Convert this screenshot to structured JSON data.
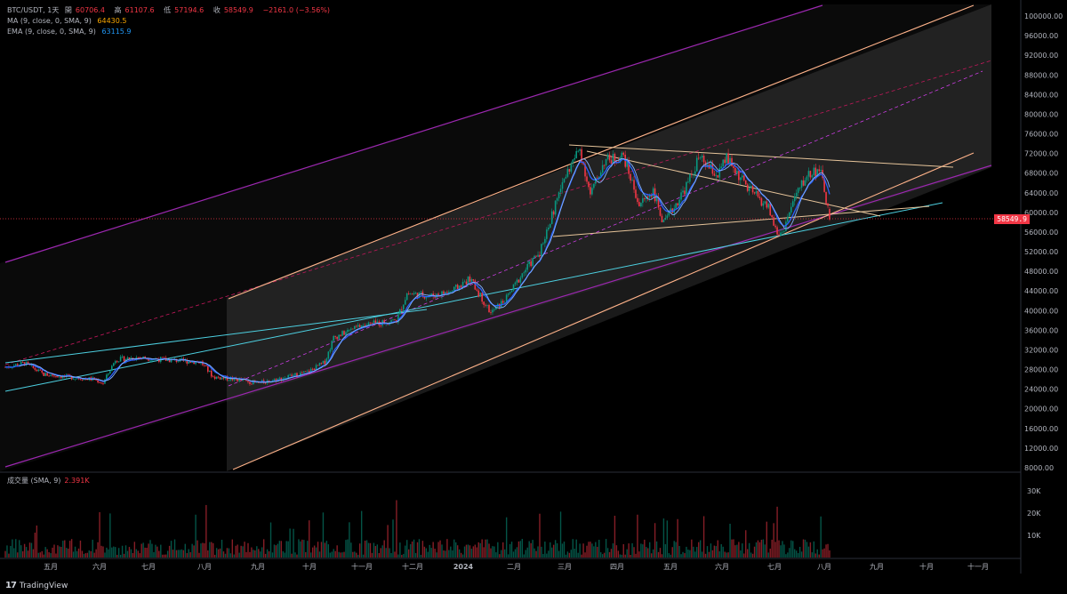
{
  "legend": {
    "symbol": "BTC/USDT, 1天",
    "open_label": "開",
    "open": "60706.4",
    "high_label": "高",
    "high": "61107.6",
    "low_label": "低",
    "low": "57194.6",
    "close_label": "收",
    "close": "58549.9",
    "change": "−2161.0 (−3.56%)",
    "ma_label": "MA (9, close, 0, SMA, 9)",
    "ma_value": "64430.5",
    "ema_label": "EMA (9, close, 0, SMA, 9)",
    "ema_value": "63115.9"
  },
  "volume_legend": {
    "label": "成交量 (SMA, 9)",
    "value": "2.391K"
  },
  "current_price_tag": "58549.9",
  "footer": {
    "logo": "17",
    "brand": "TradingView"
  },
  "colors": {
    "up": "#089981",
    "down": "#f23645",
    "ema": "#2962ff",
    "ma": "#2196f3",
    "channel_purple": "#9c27b0",
    "channel_orange": "#ffb38a",
    "trend_teal": "#4dd0e1",
    "triangle": "#e6c49a"
  },
  "chart_data": {
    "type": "candlestick",
    "title": "BTC/USDT, 1天",
    "y_axis": {
      "ticks": [
        8000,
        12000,
        16000,
        20000,
        24000,
        28000,
        32000,
        36000,
        40000,
        44000,
        48000,
        52000,
        56000,
        60000,
        64000,
        68000,
        72000,
        76000,
        80000,
        84000,
        88000,
        92000,
        96000,
        100000
      ],
      "tick_labels": [
        "8000.00",
        "12000.00",
        "16000.00",
        "20000.00",
        "24000.00",
        "28000.00",
        "32000.00",
        "36000.00",
        "40000.00",
        "44000.00",
        "48000.00",
        "52000.00",
        "56000.00",
        "60000.00",
        "64000.00",
        "68000.00",
        "72000.00",
        "76000.00",
        "80000.00",
        "84000.00",
        "88000.00",
        "92000.00",
        "96000.00",
        "100000.00"
      ],
      "range": [
        6000,
        102000
      ]
    },
    "x_axis": {
      "labels": [
        "五月",
        "六月",
        "七月",
        "八月",
        "九月",
        "十月",
        "十一月",
        "十二月",
        "2024",
        "二月",
        "三月",
        "四月",
        "五月",
        "六月",
        "七月",
        "八月",
        "九月",
        "十月",
        "十一月"
      ]
    },
    "volume_axis": {
      "tick_labels": [
        "10K",
        "20K",
        "30K"
      ]
    },
    "price_path": [
      [
        "2023-04-20",
        28500
      ],
      [
        "2023-05-01",
        29300
      ],
      [
        "2023-05-12",
        27000
      ],
      [
        "2023-05-25",
        26500
      ],
      [
        "2023-06-10",
        26000
      ],
      [
        "2023-06-15",
        25200
      ],
      [
        "2023-06-22",
        30000
      ],
      [
        "2023-07-05",
        30500
      ],
      [
        "2023-07-20",
        30000
      ],
      [
        "2023-08-10",
        29500
      ],
      [
        "2023-08-17",
        26500
      ],
      [
        "2023-09-01",
        25900
      ],
      [
        "2023-09-11",
        25200
      ],
      [
        "2023-09-25",
        26200
      ],
      [
        "2023-10-10",
        27500
      ],
      [
        "2023-10-20",
        29500
      ],
      [
        "2023-10-25",
        34500
      ],
      [
        "2023-11-10",
        37000
      ],
      [
        "2023-11-30",
        38000
      ],
      [
        "2023-12-06",
        43500
      ],
      [
        "2023-12-20",
        43000
      ],
      [
        "2024-01-01",
        44000
      ],
      [
        "2024-01-11",
        46500
      ],
      [
        "2024-01-23",
        39500
      ],
      [
        "2024-02-01",
        42500
      ],
      [
        "2024-02-10",
        47500
      ],
      [
        "2024-02-20",
        52000
      ],
      [
        "2024-02-29",
        61500
      ],
      [
        "2024-03-05",
        67000
      ],
      [
        "2024-03-14",
        73000
      ],
      [
        "2024-03-20",
        63500
      ],
      [
        "2024-03-28",
        70500
      ],
      [
        "2024-04-08",
        71500
      ],
      [
        "2024-04-17",
        61500
      ],
      [
        "2024-04-25",
        64500
      ],
      [
        "2024-05-01",
        57500
      ],
      [
        "2024-05-15",
        66000
      ],
      [
        "2024-05-21",
        71000
      ],
      [
        "2024-06-01",
        67500
      ],
      [
        "2024-06-06",
        71000
      ],
      [
        "2024-06-18",
        65000
      ],
      [
        "2024-06-30",
        61000
      ],
      [
        "2024-07-05",
        55500
      ],
      [
        "2024-07-08",
        56000
      ],
      [
        "2024-07-15",
        63000
      ],
      [
        "2024-07-22",
        67500
      ],
      [
        "2024-07-29",
        69000
      ],
      [
        "2024-08-01",
        64500
      ],
      [
        "2024-08-03",
        60700
      ],
      [
        "2024-08-04",
        58550
      ]
    ]
  }
}
